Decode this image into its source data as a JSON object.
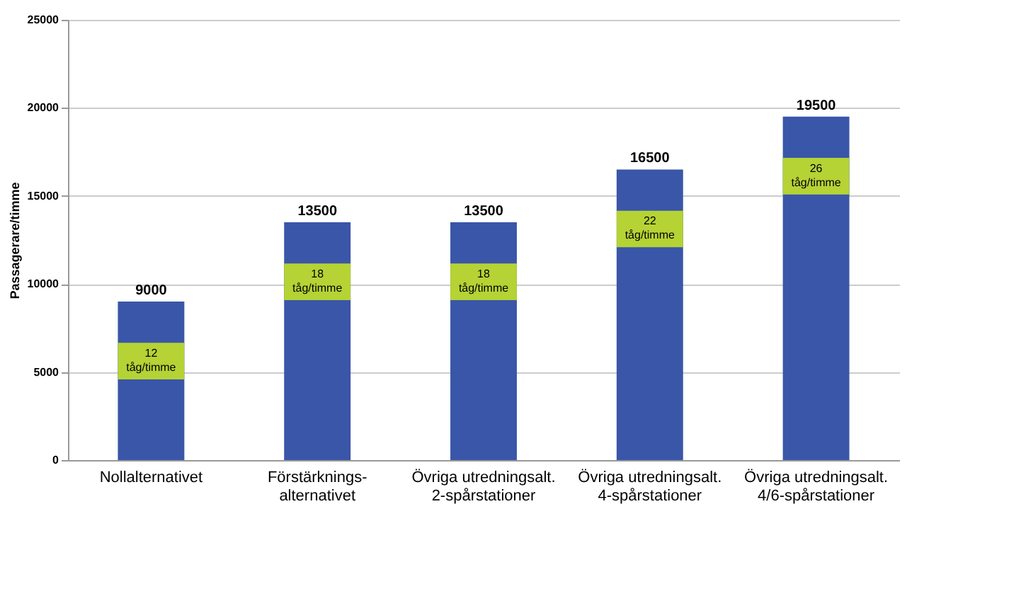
{
  "chart_data": {
    "type": "bar",
    "ylabel": "Passagerare/timme",
    "categories": [
      "Nollalternativet",
      "Förstärknings-\nalternativet",
      "Övriga utredningsalt.\n2-spårstationer",
      "Övriga utredningsalt.\n4-spårstationer",
      "Övriga utredningsalt.\n4/6-spårstationer"
    ],
    "values": [
      9000,
      13500,
      13500,
      16500,
      19500
    ],
    "color": "#3a56a8",
    "ylim": [
      0,
      25000
    ],
    "yticks": [
      0,
      5000,
      10000,
      15000,
      20000,
      25000
    ],
    "grid": "y",
    "data_labels": true,
    "annotations": [
      "12 tåg/timme",
      "18 tåg/timme",
      "18 tåg/timme",
      "22 tåg/timme",
      "26 tåg/timme"
    ]
  }
}
